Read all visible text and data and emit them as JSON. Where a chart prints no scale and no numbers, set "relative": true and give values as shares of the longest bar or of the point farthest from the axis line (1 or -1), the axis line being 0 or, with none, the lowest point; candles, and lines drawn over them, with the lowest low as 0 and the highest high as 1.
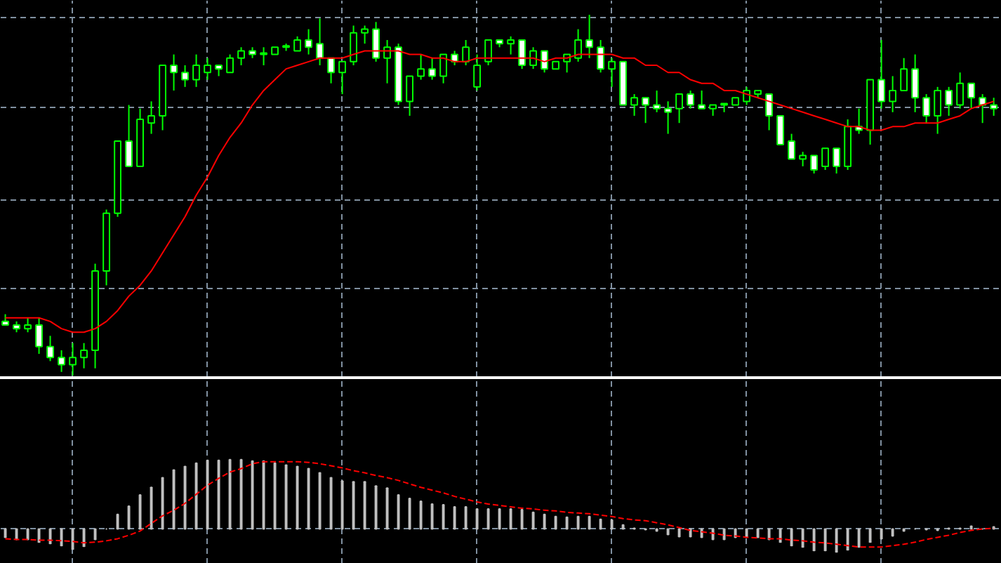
{
  "chart_data": [
    {
      "type": "candlestick",
      "relative": true,
      "grid": true,
      "color": "#00ff00",
      "categories": [
        null,
        null,
        null,
        null,
        null,
        null,
        null,
        null,
        null,
        null,
        null,
        null,
        null,
        null,
        null,
        null,
        null,
        null,
        null,
        null,
        null,
        null,
        null,
        null,
        null,
        null,
        null,
        null,
        null,
        null,
        null,
        null,
        null,
        null,
        null,
        null,
        null,
        null,
        null,
        null,
        null,
        null,
        null,
        null,
        null,
        null,
        null,
        null,
        null,
        null,
        null,
        null,
        null,
        null,
        null,
        null,
        null,
        null,
        null,
        null,
        null,
        null,
        null,
        null,
        null,
        null,
        null,
        null,
        null,
        null,
        null,
        null,
        null,
        null,
        null,
        null,
        null,
        null,
        null,
        null,
        null,
        null,
        null,
        null,
        null,
        null,
        null,
        null,
        null
      ],
      "ohlc": [
        [
          0.15,
          0.17,
          0.14,
          0.14
        ],
        [
          0.14,
          0.15,
          0.12,
          0.13
        ],
        [
          0.13,
          0.16,
          0.12,
          0.14
        ],
        [
          0.14,
          0.16,
          0.06,
          0.08
        ],
        [
          0.08,
          0.11,
          0.04,
          0.05
        ],
        [
          0.05,
          0.07,
          0.01,
          0.03
        ],
        [
          0.03,
          0.09,
          0,
          0.05
        ],
        [
          0.05,
          0.09,
          0.02,
          0.07
        ],
        [
          0.07,
          0.31,
          0.02,
          0.29
        ],
        [
          0.29,
          0.46,
          0.25,
          0.45
        ],
        [
          0.45,
          0.65,
          0.44,
          0.65
        ],
        [
          0.65,
          0.75,
          0.58,
          0.58
        ],
        [
          0.58,
          0.74,
          0.58,
          0.71
        ],
        [
          0.7,
          0.76,
          0.67,
          0.72
        ],
        [
          0.72,
          0.86,
          0.68,
          0.86
        ],
        [
          0.86,
          0.89,
          0.79,
          0.84
        ],
        [
          0.84,
          0.86,
          0.8,
          0.82
        ],
        [
          0.82,
          0.89,
          0.8,
          0.86
        ],
        [
          0.84,
          0.88,
          0.82,
          0.86
        ],
        [
          0.86,
          0.86,
          0.83,
          0.85
        ],
        [
          0.84,
          0.89,
          0.84,
          0.88
        ],
        [
          0.88,
          0.91,
          0.86,
          0.9
        ],
        [
          0.9,
          0.91,
          0.88,
          0.89
        ],
        [
          0.89,
          0.91,
          0.86,
          0.89
        ],
        [
          0.89,
          0.91,
          0.89,
          0.91
        ],
        [
          0.91,
          0.92,
          0.9,
          0.91
        ],
        [
          0.9,
          0.94,
          0.9,
          0.93
        ],
        [
          0.93,
          0.96,
          0.89,
          0.91
        ],
        [
          0.92,
          0.99,
          0.86,
          0.88
        ],
        [
          0.88,
          0.88,
          0.81,
          0.84
        ],
        [
          0.84,
          0.87,
          0.78,
          0.87
        ],
        [
          0.87,
          0.97,
          0.86,
          0.95
        ],
        [
          0.95,
          0.97,
          0.92,
          0.96
        ],
        [
          0.96,
          0.98,
          0.87,
          0.88
        ],
        [
          0.88,
          0.93,
          0.81,
          0.91
        ],
        [
          0.91,
          0.92,
          0.75,
          0.76
        ],
        [
          0.76,
          0.83,
          0.72,
          0.83
        ],
        [
          0.83,
          0.89,
          0.82,
          0.85
        ],
        [
          0.85,
          0.88,
          0.82,
          0.83
        ],
        [
          0.83,
          0.89,
          0.81,
          0.89
        ],
        [
          0.89,
          0.9,
          0.86,
          0.87
        ],
        [
          0.87,
          0.93,
          0.86,
          0.91
        ],
        [
          0.8,
          0.89,
          0.79,
          0.86
        ],
        [
          0.87,
          0.93,
          0.86,
          0.93
        ],
        [
          0.93,
          0.93,
          0.91,
          0.92
        ],
        [
          0.92,
          0.94,
          0.89,
          0.93
        ],
        [
          0.93,
          0.93,
          0.85,
          0.86
        ],
        [
          0.86,
          0.91,
          0.85,
          0.9
        ],
        [
          0.9,
          0.9,
          0.84,
          0.85
        ],
        [
          0.85,
          0.87,
          0.85,
          0.87
        ],
        [
          0.87,
          0.89,
          0.84,
          0.89
        ],
        [
          0.88,
          0.96,
          0.87,
          0.93
        ],
        [
          0.93,
          1,
          0.88,
          0.91
        ],
        [
          0.91,
          0.93,
          0.84,
          0.85
        ],
        [
          0.85,
          0.88,
          0.8,
          0.87
        ],
        [
          0.87,
          0.87,
          0.75,
          0.75
        ],
        [
          0.75,
          0.78,
          0.72,
          0.77
        ],
        [
          0.77,
          0.77,
          0.7,
          0.75
        ],
        [
          0.75,
          0.79,
          0.73,
          0.74
        ],
        [
          0.74,
          0.76,
          0.67,
          0.73
        ],
        [
          0.74,
          0.78,
          0.7,
          0.78
        ],
        [
          0.78,
          0.79,
          0.74,
          0.75
        ],
        [
          0.75,
          0.79,
          0.74,
          0.74
        ],
        [
          0.74,
          0.75,
          0.72,
          0.75
        ],
        [
          0.75,
          0.75,
          0.73,
          0.75
        ],
        [
          0.75,
          0.77,
          0.75,
          0.77
        ],
        [
          0.76,
          0.8,
          0.75,
          0.79
        ],
        [
          0.78,
          0.79,
          0.77,
          0.79
        ],
        [
          0.78,
          0.78,
          0.68,
          0.72
        ],
        [
          0.72,
          0.72,
          0.64,
          0.64
        ],
        [
          0.65,
          0.67,
          0.6,
          0.6
        ],
        [
          0.6,
          0.62,
          0.58,
          0.61
        ],
        [
          0.61,
          0.61,
          0.56,
          0.57
        ],
        [
          0.58,
          0.63,
          0.57,
          0.63
        ],
        [
          0.63,
          0.63,
          0.56,
          0.58
        ],
        [
          0.58,
          0.71,
          0.57,
          0.69
        ],
        [
          0.69,
          0.74,
          0.67,
          0.68
        ],
        [
          0.68,
          0.82,
          0.64,
          0.82
        ],
        [
          0.82,
          0.93,
          0.74,
          0.76
        ],
        [
          0.76,
          0.83,
          0.73,
          0.79
        ],
        [
          0.79,
          0.88,
          0.79,
          0.85
        ],
        [
          0.85,
          0.89,
          0.73,
          0.77
        ],
        [
          0.77,
          0.78,
          0.7,
          0.72
        ],
        [
          0.72,
          0.8,
          0.67,
          0.79
        ],
        [
          0.79,
          0.8,
          0.72,
          0.75
        ],
        [
          0.75,
          0.84,
          0.74,
          0.81
        ],
        [
          0.81,
          0.81,
          0.74,
          0.77
        ],
        [
          0.77,
          0.78,
          0.7,
          0.75
        ],
        [
          0.75,
          0.77,
          0.72,
          0.74
        ]
      ],
      "series": [
        {
          "type": "line",
          "color": "#ff0000",
          "values": [
            0.16,
            0.16,
            0.16,
            0.16,
            0.15,
            0.13,
            0.12,
            0.12,
            0.13,
            0.15,
            0.18,
            0.22,
            0.25,
            0.29,
            0.34,
            0.39,
            0.44,
            0.5,
            0.55,
            0.61,
            0.66,
            0.7,
            0.75,
            0.79,
            0.82,
            0.85,
            0.86,
            0.87,
            0.88,
            0.88,
            0.88,
            0.89,
            0.9,
            0.9,
            0.9,
            0.9,
            0.89,
            0.89,
            0.88,
            0.88,
            0.87,
            0.87,
            0.88,
            0.88,
            0.88,
            0.88,
            0.88,
            0.88,
            0.87,
            0.88,
            0.88,
            0.89,
            0.89,
            0.89,
            0.89,
            0.88,
            0.88,
            0.86,
            0.86,
            0.84,
            0.84,
            0.82,
            0.81,
            0.81,
            0.79,
            0.79,
            0.78,
            0.77,
            0.76,
            0.75,
            0.74,
            0.73,
            0.72,
            0.71,
            0.7,
            0.69,
            0.69,
            0.68,
            0.68,
            0.69,
            0.69,
            0.7,
            0.7,
            0.7,
            0.71,
            0.72,
            0.74,
            0.75,
            0.76
          ]
        }
      ]
    },
    {
      "type": "bar",
      "relative": true,
      "grid": true,
      "categories": [
        null,
        null,
        null,
        null,
        null,
        null,
        null,
        null,
        null,
        null,
        null,
        null,
        null,
        null,
        null,
        null,
        null,
        null,
        null,
        null,
        null,
        null,
        null,
        null,
        null,
        null,
        null,
        null,
        null,
        null,
        null,
        null,
        null,
        null,
        null,
        null,
        null,
        null,
        null,
        null,
        null,
        null,
        null,
        null,
        null,
        null,
        null,
        null,
        null,
        null,
        null,
        null,
        null,
        null,
        null,
        null,
        null,
        null,
        null,
        null,
        null,
        null,
        null,
        null,
        null,
        null,
        null,
        null,
        null,
        null,
        null,
        null,
        null,
        null,
        null,
        null,
        null,
        null,
        null,
        null,
        null,
        null,
        null,
        null,
        null,
        null,
        null,
        null,
        null
      ],
      "series": [
        {
          "type": "bar",
          "color": "#c0c0c0",
          "values": [
            -0.12,
            -0.15,
            -0.15,
            -0.19,
            -0.21,
            -0.24,
            -0.29,
            -0.25,
            -0.15,
            0,
            0.21,
            0.33,
            0.49,
            0.6,
            0.74,
            0.85,
            0.9,
            0.95,
            0.99,
            0.99,
            1,
            1,
            0.98,
            0.98,
            0.95,
            0.92,
            0.9,
            0.87,
            0.81,
            0.74,
            0.69,
            0.68,
            0.68,
            0.62,
            0.59,
            0.49,
            0.44,
            0.4,
            0.36,
            0.35,
            0.32,
            0.32,
            0.29,
            0.29,
            0.29,
            0.29,
            0.28,
            0.24,
            0.21,
            0.18,
            0.17,
            0.18,
            0.18,
            0.14,
            0.13,
            0.06,
            0.01,
            -0.01,
            -0.03,
            -0.08,
            -0.11,
            -0.11,
            -0.12,
            -0.15,
            -0.15,
            -0.12,
            -0.11,
            -0.12,
            -0.15,
            -0.19,
            -0.24,
            -0.26,
            -0.31,
            -0.31,
            -0.33,
            -0.3,
            -0.26,
            -0.19,
            -0.14,
            -0.1,
            -0.03,
            0,
            -0.01,
            -0.02,
            0.01,
            0.01,
            0.04,
            0,
            0.03
          ]
        },
        {
          "type": "line",
          "color": "#ff0000",
          "line_style": "dashed",
          "values": [
            -0.14,
            -0.15,
            -0.15,
            -0.16,
            -0.16,
            -0.17,
            -0.18,
            -0.2,
            -0.19,
            -0.17,
            -0.14,
            -0.09,
            -0.03,
            0.08,
            0.19,
            0.27,
            0.37,
            0.5,
            0.63,
            0.73,
            0.82,
            0.87,
            0.94,
            0.97,
            0.97,
            0.97,
            0.97,
            0.96,
            0.94,
            0.91,
            0.88,
            0.84,
            0.81,
            0.77,
            0.74,
            0.7,
            0.65,
            0.6,
            0.56,
            0.52,
            0.47,
            0.43,
            0.39,
            0.36,
            0.34,
            0.32,
            0.3,
            0.29,
            0.27,
            0.26,
            0.24,
            0.23,
            0.22,
            0.2,
            0.18,
            0.15,
            0.13,
            0.12,
            0.09,
            0.06,
            0.02,
            -0.02,
            -0.04,
            -0.06,
            -0.09,
            -0.1,
            -0.12,
            -0.13,
            -0.14,
            -0.14,
            -0.16,
            -0.17,
            -0.19,
            -0.2,
            -0.22,
            -0.24,
            -0.26,
            -0.26,
            -0.26,
            -0.24,
            -0.22,
            -0.19,
            -0.15,
            -0.12,
            -0.09,
            -0.05,
            -0.02,
            0,
            0.01
          ]
        }
      ]
    }
  ]
}
